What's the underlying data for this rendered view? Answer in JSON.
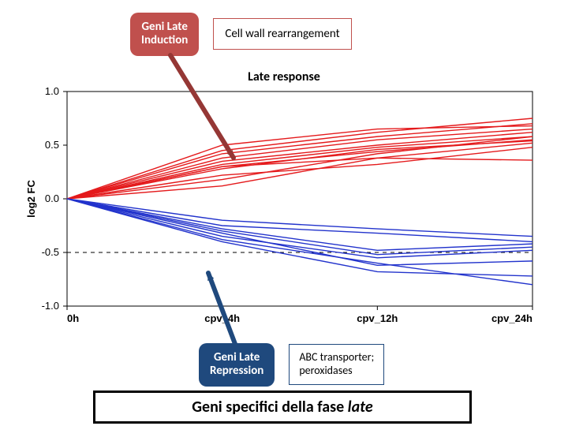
{
  "top": {
    "induction_label_line1": "Geni Late",
    "induction_label_line2": "Induction",
    "cellwall_label": "Cell wall rearrangement"
  },
  "bottom": {
    "repression_label_line1": "Geni Late",
    "repression_label_line2": "Repression",
    "abc_label_line1": "ABC transporter;",
    "abc_label_line2": "peroxidases"
  },
  "caption": {
    "text_prefix": "Geni specifici della fase ",
    "italic": "late"
  },
  "chart": {
    "title": "Late response",
    "ylabel": "log2 FC",
    "x_categories": [
      "0h",
      "cpv_4h",
      "cpv_12h",
      "cpv_24h"
    ],
    "ylim": [
      -1.0,
      1.0
    ],
    "yticks": [
      -1.0,
      -0.5,
      0.0,
      0.5,
      1.0
    ],
    "ytick_labels": [
      "-1.0",
      "-0.5",
      "0.0",
      "0.5",
      "1.0"
    ],
    "hline_at": -0.5,
    "red_lines": [
      [
        0.0,
        0.5,
        0.65,
        0.68
      ],
      [
        0.0,
        0.45,
        0.62,
        0.75
      ],
      [
        0.0,
        0.42,
        0.58,
        0.7
      ],
      [
        0.0,
        0.38,
        0.55,
        0.65
      ],
      [
        0.0,
        0.35,
        0.5,
        0.62
      ],
      [
        0.0,
        0.32,
        0.48,
        0.58
      ],
      [
        0.0,
        0.3,
        0.44,
        0.55
      ],
      [
        0.0,
        0.28,
        0.46,
        0.54
      ],
      [
        0.0,
        0.18,
        0.42,
        0.58
      ],
      [
        0.0,
        0.12,
        0.38,
        0.52
      ],
      [
        0.0,
        0.22,
        0.32,
        0.48
      ],
      [
        0.0,
        0.3,
        0.38,
        0.36
      ]
    ],
    "blue_lines": [
      [
        0.0,
        -0.2,
        -0.28,
        -0.35
      ],
      [
        0.0,
        -0.25,
        -0.32,
        -0.4
      ],
      [
        0.0,
        -0.28,
        -0.48,
        -0.42
      ],
      [
        0.0,
        -0.3,
        -0.52,
        -0.45
      ],
      [
        0.0,
        -0.35,
        -0.55,
        -0.48
      ],
      [
        0.0,
        -0.32,
        -0.62,
        -0.58
      ],
      [
        0.0,
        -0.4,
        -0.68,
        -0.72
      ],
      [
        0.0,
        -0.38,
        -0.6,
        -0.8
      ]
    ],
    "colors": {
      "red": "#e41a1c",
      "blue": "#2233cc",
      "axis": "#000000",
      "grid": "#000000",
      "hline": "#000000",
      "bg": "#ffffff",
      "pointer_red": "#953735",
      "pointer_blue": "#1f497d"
    },
    "linewidth": 1.4,
    "tick_fontsize": 13,
    "label_fontsize": 13,
    "title_fontsize": 16
  },
  "pointers": {
    "red": {
      "from": [
        216,
        70
      ],
      "to": [
        296,
        200
      ],
      "color": "#953735",
      "width": 6
    },
    "blue": {
      "from": [
        298,
        436
      ],
      "to": [
        264,
        346
      ],
      "color": "#1f497d",
      "width": 6
    }
  }
}
